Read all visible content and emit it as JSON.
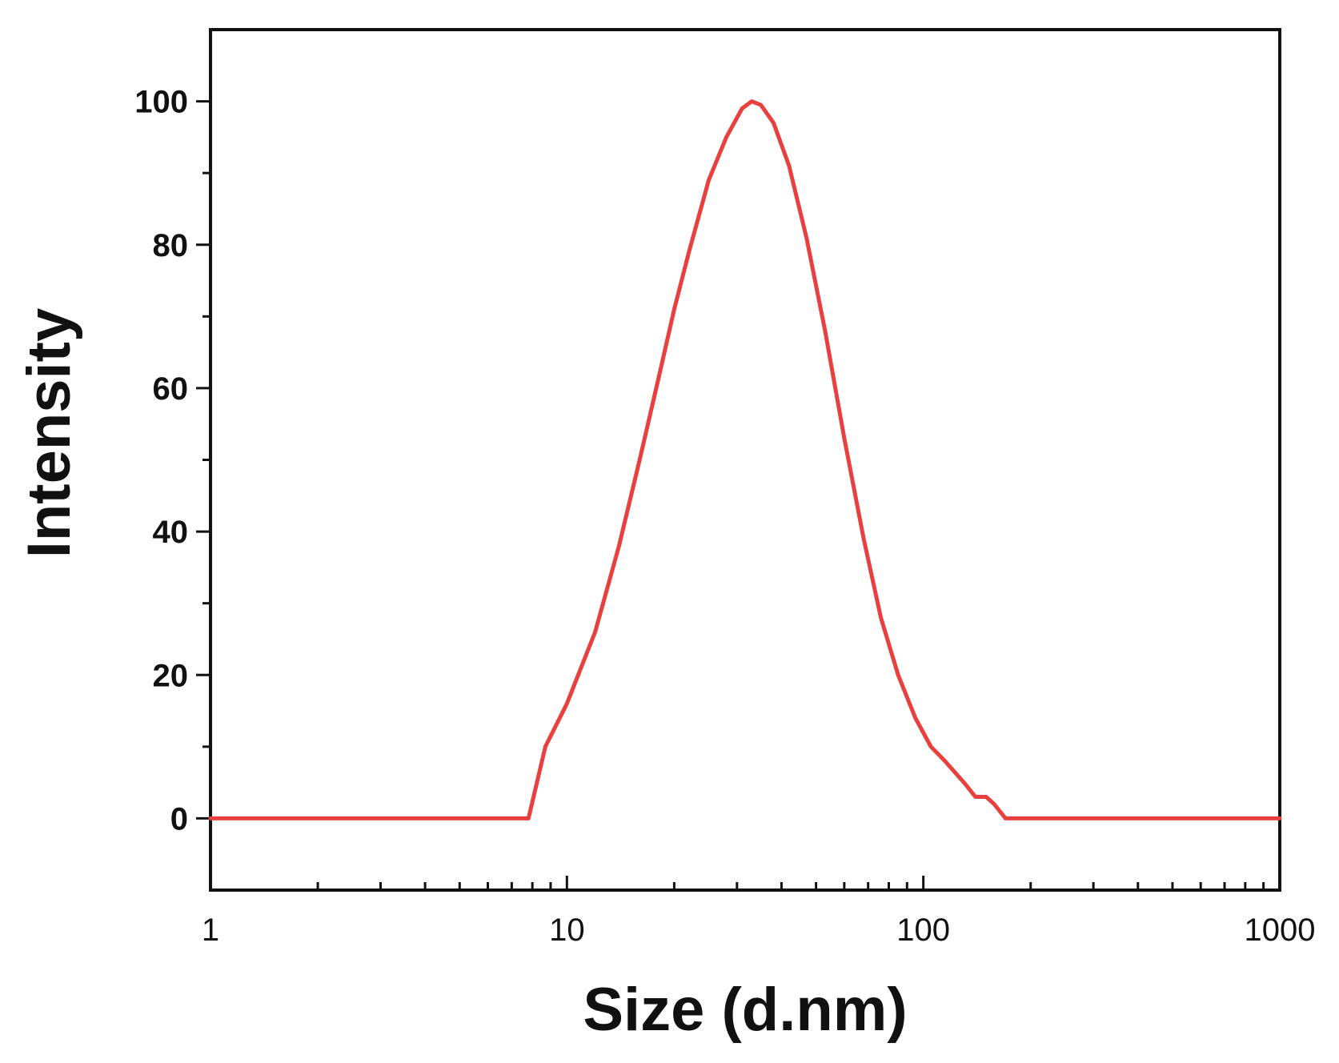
{
  "chart_data": {
    "type": "line",
    "title": "",
    "xlabel": "Size (d.nm)",
    "ylabel": "Intensity",
    "xscale": "log",
    "xlim": [
      1,
      1000
    ],
    "ylim": [
      -10,
      110
    ],
    "grid": false,
    "legend": "none",
    "x_ticks": [
      1,
      10,
      100,
      1000
    ],
    "x_tick_labels": [
      "1",
      "10",
      "100",
      "1000"
    ],
    "y_ticks": [
      0,
      20,
      40,
      60,
      80,
      100
    ],
    "y_tick_labels": [
      "0",
      "20",
      "40",
      "60",
      "80",
      "100"
    ],
    "series": [
      {
        "color": "#e8403e",
        "x": [
          1,
          7.8,
          8.7,
          10,
          12,
          14,
          16,
          18,
          20,
          22,
          25,
          28,
          31,
          33,
          35,
          38,
          42,
          47,
          53,
          60,
          68,
          76,
          85,
          95,
          105,
          115,
          130,
          140,
          150,
          158,
          170,
          200,
          500,
          1000
        ],
        "y": [
          0,
          0,
          10,
          16,
          26,
          38,
          50,
          61,
          71,
          79,
          89,
          95,
          99,
          100,
          99.5,
          97,
          91,
          81,
          68,
          53,
          39,
          28,
          20,
          14,
          10,
          8,
          5,
          3,
          3,
          2,
          0,
          0,
          0,
          0
        ]
      }
    ]
  }
}
